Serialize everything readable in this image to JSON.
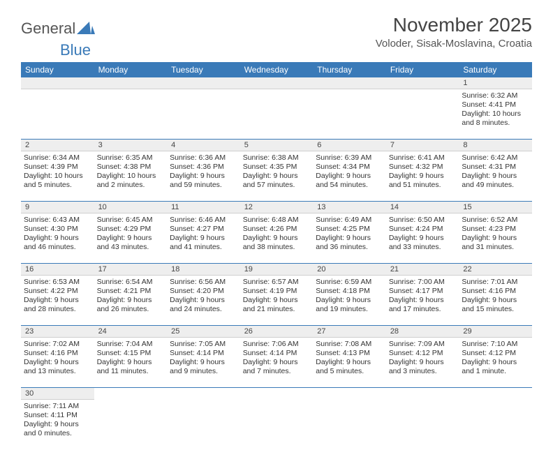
{
  "logo": {
    "part1": "General",
    "part2": "Blue"
  },
  "title": "November 2025",
  "location": "Voloder, Sisak-Moslavina, Croatia",
  "headers": [
    "Sunday",
    "Monday",
    "Tuesday",
    "Wednesday",
    "Thursday",
    "Friday",
    "Saturday"
  ],
  "colors": {
    "header_bg": "#3a7ab8",
    "header_fg": "#ffffff",
    "daynum_bg": "#eeeeee",
    "row_border": "#3a7ab8",
    "text": "#333333",
    "background": "#ffffff"
  },
  "weeks": [
    {
      "days": [
        null,
        null,
        null,
        null,
        null,
        null,
        {
          "n": "1",
          "sunrise": "Sunrise: 6:32 AM",
          "sunset": "Sunset: 4:41 PM",
          "day1": "Daylight: 10 hours",
          "day2": "and 8 minutes."
        }
      ]
    },
    {
      "days": [
        {
          "n": "2",
          "sunrise": "Sunrise: 6:34 AM",
          "sunset": "Sunset: 4:39 PM",
          "day1": "Daylight: 10 hours",
          "day2": "and 5 minutes."
        },
        {
          "n": "3",
          "sunrise": "Sunrise: 6:35 AM",
          "sunset": "Sunset: 4:38 PM",
          "day1": "Daylight: 10 hours",
          "day2": "and 2 minutes."
        },
        {
          "n": "4",
          "sunrise": "Sunrise: 6:36 AM",
          "sunset": "Sunset: 4:36 PM",
          "day1": "Daylight: 9 hours",
          "day2": "and 59 minutes."
        },
        {
          "n": "5",
          "sunrise": "Sunrise: 6:38 AM",
          "sunset": "Sunset: 4:35 PM",
          "day1": "Daylight: 9 hours",
          "day2": "and 57 minutes."
        },
        {
          "n": "6",
          "sunrise": "Sunrise: 6:39 AM",
          "sunset": "Sunset: 4:34 PM",
          "day1": "Daylight: 9 hours",
          "day2": "and 54 minutes."
        },
        {
          "n": "7",
          "sunrise": "Sunrise: 6:41 AM",
          "sunset": "Sunset: 4:32 PM",
          "day1": "Daylight: 9 hours",
          "day2": "and 51 minutes."
        },
        {
          "n": "8",
          "sunrise": "Sunrise: 6:42 AM",
          "sunset": "Sunset: 4:31 PM",
          "day1": "Daylight: 9 hours",
          "day2": "and 49 minutes."
        }
      ]
    },
    {
      "days": [
        {
          "n": "9",
          "sunrise": "Sunrise: 6:43 AM",
          "sunset": "Sunset: 4:30 PM",
          "day1": "Daylight: 9 hours",
          "day2": "and 46 minutes."
        },
        {
          "n": "10",
          "sunrise": "Sunrise: 6:45 AM",
          "sunset": "Sunset: 4:29 PM",
          "day1": "Daylight: 9 hours",
          "day2": "and 43 minutes."
        },
        {
          "n": "11",
          "sunrise": "Sunrise: 6:46 AM",
          "sunset": "Sunset: 4:27 PM",
          "day1": "Daylight: 9 hours",
          "day2": "and 41 minutes."
        },
        {
          "n": "12",
          "sunrise": "Sunrise: 6:48 AM",
          "sunset": "Sunset: 4:26 PM",
          "day1": "Daylight: 9 hours",
          "day2": "and 38 minutes."
        },
        {
          "n": "13",
          "sunrise": "Sunrise: 6:49 AM",
          "sunset": "Sunset: 4:25 PM",
          "day1": "Daylight: 9 hours",
          "day2": "and 36 minutes."
        },
        {
          "n": "14",
          "sunrise": "Sunrise: 6:50 AM",
          "sunset": "Sunset: 4:24 PM",
          "day1": "Daylight: 9 hours",
          "day2": "and 33 minutes."
        },
        {
          "n": "15",
          "sunrise": "Sunrise: 6:52 AM",
          "sunset": "Sunset: 4:23 PM",
          "day1": "Daylight: 9 hours",
          "day2": "and 31 minutes."
        }
      ]
    },
    {
      "days": [
        {
          "n": "16",
          "sunrise": "Sunrise: 6:53 AM",
          "sunset": "Sunset: 4:22 PM",
          "day1": "Daylight: 9 hours",
          "day2": "and 28 minutes."
        },
        {
          "n": "17",
          "sunrise": "Sunrise: 6:54 AM",
          "sunset": "Sunset: 4:21 PM",
          "day1": "Daylight: 9 hours",
          "day2": "and 26 minutes."
        },
        {
          "n": "18",
          "sunrise": "Sunrise: 6:56 AM",
          "sunset": "Sunset: 4:20 PM",
          "day1": "Daylight: 9 hours",
          "day2": "and 24 minutes."
        },
        {
          "n": "19",
          "sunrise": "Sunrise: 6:57 AM",
          "sunset": "Sunset: 4:19 PM",
          "day1": "Daylight: 9 hours",
          "day2": "and 21 minutes."
        },
        {
          "n": "20",
          "sunrise": "Sunrise: 6:59 AM",
          "sunset": "Sunset: 4:18 PM",
          "day1": "Daylight: 9 hours",
          "day2": "and 19 minutes."
        },
        {
          "n": "21",
          "sunrise": "Sunrise: 7:00 AM",
          "sunset": "Sunset: 4:17 PM",
          "day1": "Daylight: 9 hours",
          "day2": "and 17 minutes."
        },
        {
          "n": "22",
          "sunrise": "Sunrise: 7:01 AM",
          "sunset": "Sunset: 4:16 PM",
          "day1": "Daylight: 9 hours",
          "day2": "and 15 minutes."
        }
      ]
    },
    {
      "days": [
        {
          "n": "23",
          "sunrise": "Sunrise: 7:02 AM",
          "sunset": "Sunset: 4:16 PM",
          "day1": "Daylight: 9 hours",
          "day2": "and 13 minutes."
        },
        {
          "n": "24",
          "sunrise": "Sunrise: 7:04 AM",
          "sunset": "Sunset: 4:15 PM",
          "day1": "Daylight: 9 hours",
          "day2": "and 11 minutes."
        },
        {
          "n": "25",
          "sunrise": "Sunrise: 7:05 AM",
          "sunset": "Sunset: 4:14 PM",
          "day1": "Daylight: 9 hours",
          "day2": "and 9 minutes."
        },
        {
          "n": "26",
          "sunrise": "Sunrise: 7:06 AM",
          "sunset": "Sunset: 4:14 PM",
          "day1": "Daylight: 9 hours",
          "day2": "and 7 minutes."
        },
        {
          "n": "27",
          "sunrise": "Sunrise: 7:08 AM",
          "sunset": "Sunset: 4:13 PM",
          "day1": "Daylight: 9 hours",
          "day2": "and 5 minutes."
        },
        {
          "n": "28",
          "sunrise": "Sunrise: 7:09 AM",
          "sunset": "Sunset: 4:12 PM",
          "day1": "Daylight: 9 hours",
          "day2": "and 3 minutes."
        },
        {
          "n": "29",
          "sunrise": "Sunrise: 7:10 AM",
          "sunset": "Sunset: 4:12 PM",
          "day1": "Daylight: 9 hours",
          "day2": "and 1 minute."
        }
      ]
    },
    {
      "days": [
        {
          "n": "30",
          "sunrise": "Sunrise: 7:11 AM",
          "sunset": "Sunset: 4:11 PM",
          "day1": "Daylight: 9 hours",
          "day2": "and 0 minutes."
        },
        null,
        null,
        null,
        null,
        null,
        null
      ]
    }
  ]
}
